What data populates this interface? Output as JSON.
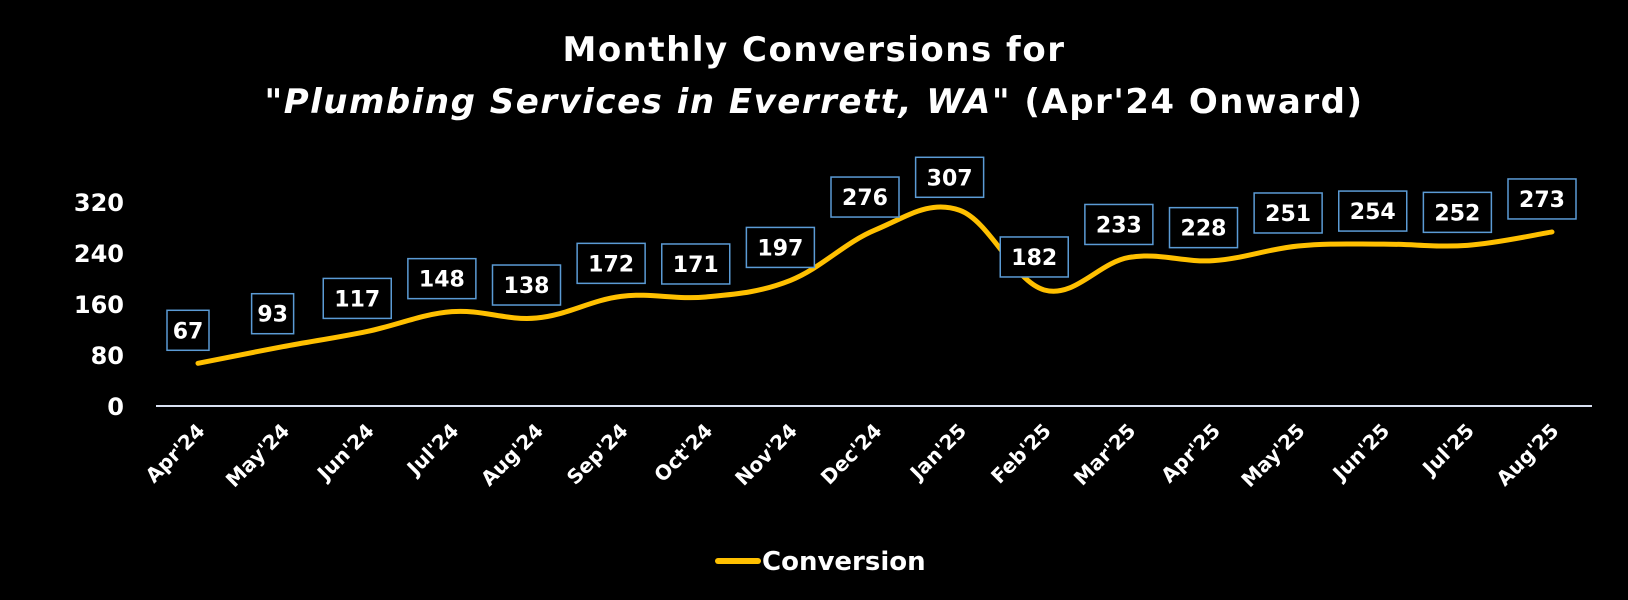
{
  "chart_data": {
    "type": "line",
    "title": "Monthly Conversions for",
    "subtitle_italic": "\"Plumbing Services in Everrett, WA\"",
    "subtitle_rest": " (Apr'24 Onward)",
    "categories": [
      "Apr'24",
      "May'24",
      "Jun'24",
      "Jul'24",
      "Aug'24",
      "Sep'24",
      "Oct'24",
      "Nov'24",
      "Dec'24",
      "Jan'25",
      "Feb'25",
      "Mar'25",
      "Apr'25",
      "May'25",
      "Jun'25",
      "Jul'25",
      "Aug'25"
    ],
    "series": [
      {
        "name": "Conversion",
        "color": "#ffc000",
        "values": [
          67,
          93,
          117,
          148,
          138,
          172,
          171,
          197,
          276,
          307,
          182,
          233,
          228,
          251,
          254,
          252,
          273
        ]
      }
    ],
    "yticks": [
      0,
      80,
      160,
      240,
      320
    ],
    "ylim": [
      0,
      320
    ],
    "grid": false,
    "smooth": true,
    "legend_position": "bottom",
    "colors": {
      "background": "#000000",
      "line": "#ffc000",
      "label_border": "#5b9bd5",
      "axis": "#d9e1f2"
    }
  }
}
